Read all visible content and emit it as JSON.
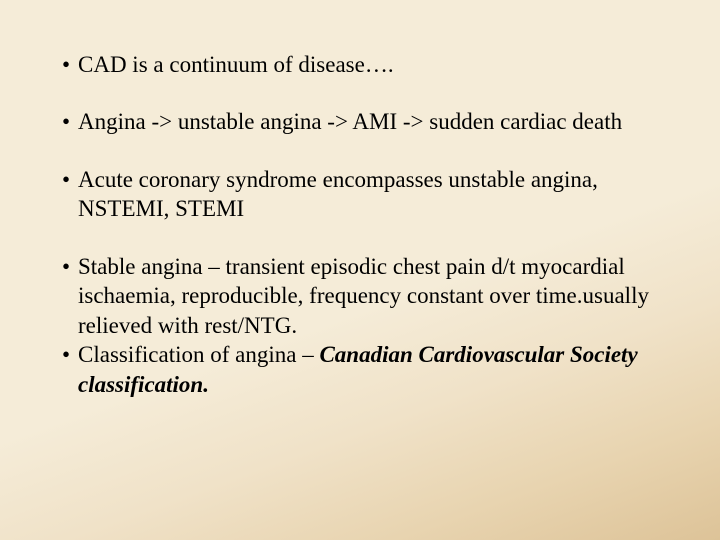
{
  "slide": {
    "background_gradient": [
      "#f5ecd8",
      "#f5ecd8",
      "#f0e2c8",
      "#e8d4b0",
      "#ddc398"
    ],
    "text_color": "#000000",
    "font_family": "Georgia, Times New Roman, serif",
    "font_size_pt": 23,
    "bullets": [
      {
        "text": "CAD is a continuum of disease….",
        "spacing_after": 28
      },
      {
        "text": "Angina -> unstable angina -> AMI -> sudden cardiac death",
        "spacing_after": 28
      },
      {
        "text": "Acute coronary syndrome encompasses unstable angina, NSTEMI, STEMI",
        "spacing_after": 28
      },
      {
        "text": "Stable angina – transient episodic chest pain d/t myocardial ischaemia, reproducible, frequency constant over time.usually relieved with rest/NTG.",
        "spacing_after": 0
      },
      {
        "text_prefix": "Classification of angina – ",
        "text_emph": "Canadian Cardiovascular Society classification.",
        "spacing_after": 0
      }
    ]
  }
}
